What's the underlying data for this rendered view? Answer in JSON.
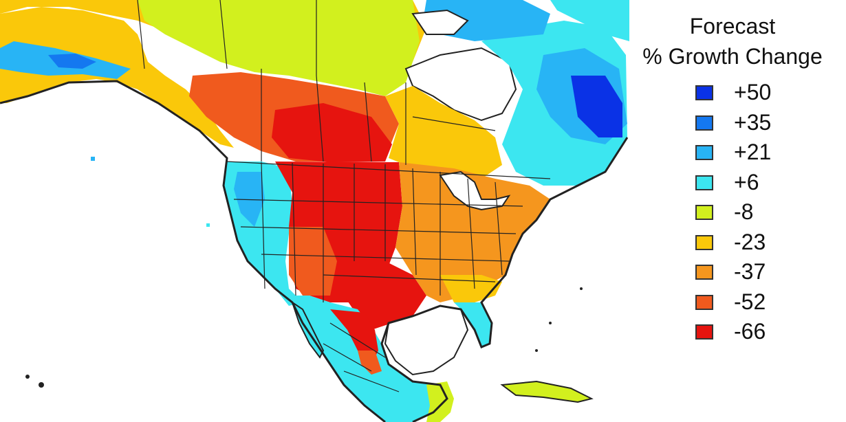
{
  "legend": {
    "title_line1": "Forecast",
    "title_line2": "% Growth Change",
    "items": [
      {
        "label": "+50",
        "color": "#0a32e6"
      },
      {
        "label": "+35",
        "color": "#1478f0"
      },
      {
        "label": "+21",
        "color": "#28b4f5"
      },
      {
        "label": "+6",
        "color": "#3ce6f0"
      },
      {
        "label": "-8",
        "color": "#d2f01e"
      },
      {
        "label": "-23",
        "color": "#fac80a"
      },
      {
        "label": "-37",
        "color": "#f5961e"
      },
      {
        "label": "-52",
        "color": "#f05a1e"
      },
      {
        "label": "-66",
        "color": "#e6140f"
      }
    ]
  }
}
